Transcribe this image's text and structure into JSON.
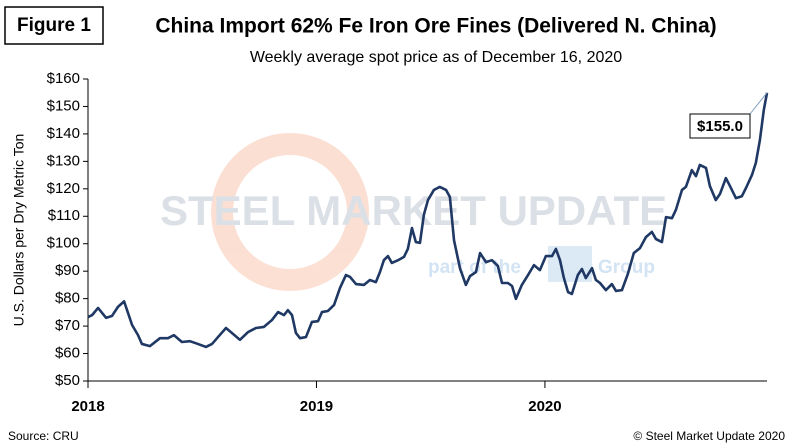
{
  "chart_data": {
    "type": "line",
    "figure_label": "Figure 1",
    "title": "China Import 62% Fe Iron Ore Fines (Delivered N. China)",
    "subtitle": "Weekly average spot price as of December 16, 2020",
    "y_label": "U.S. Dollars per Dry Metric Ton",
    "source": "Source: CRU",
    "copyright": "© Steel Market Update 2020",
    "watermark": [
      "STEEL MARKET UPDATE",
      "part of the",
      "Group"
    ],
    "xlim": [
      2018,
      2020.972
    ],
    "xticks": [
      2018,
      2019,
      2020
    ],
    "ylim": [
      50,
      160
    ],
    "yticks": [
      {
        "value": 50,
        "label": "$50"
      },
      {
        "value": 60,
        "label": "$60"
      },
      {
        "value": 70,
        "label": "$70"
      },
      {
        "value": 80,
        "label": "$80"
      },
      {
        "value": 90,
        "label": "$90"
      },
      {
        "value": 100,
        "label": "$100"
      },
      {
        "value": 110,
        "label": "$110"
      },
      {
        "value": 120,
        "label": "$120"
      },
      {
        "value": 130,
        "label": "$130"
      },
      {
        "value": 140,
        "label": "$140"
      },
      {
        "value": 150,
        "label": "$150"
      },
      {
        "value": 160,
        "label": "$160"
      }
    ],
    "grid": false,
    "x": [
      2018.0,
      2018.018,
      2018.044,
      2018.079,
      2018.105,
      2018.131,
      2018.158,
      2018.193,
      2018.219,
      2018.236,
      2018.271,
      2018.315,
      2018.35,
      2018.376,
      2018.411,
      2018.446,
      2018.481,
      2018.516,
      2018.543,
      2018.569,
      2018.604,
      2018.63,
      2018.665,
      2018.7,
      2018.735,
      2018.77,
      2018.805,
      2018.832,
      2018.858,
      2018.875,
      2018.893,
      2018.91,
      2018.928,
      2018.954,
      2018.98,
      2019.007,
      2019.024,
      2019.05,
      2019.077,
      2019.103,
      2019.129,
      2019.147,
      2019.173,
      2019.208,
      2019.234,
      2019.26,
      2019.278,
      2019.295,
      2019.313,
      2019.33,
      2019.357,
      2019.383,
      2019.4,
      2019.418,
      2019.435,
      2019.453,
      2019.47,
      2019.488,
      2019.514,
      2019.54,
      2019.567,
      2019.584,
      2019.602,
      2019.628,
      2019.654,
      2019.672,
      2019.698,
      2019.716,
      2019.742,
      2019.768,
      2019.794,
      2019.812,
      2019.838,
      2019.856,
      2019.873,
      2019.899,
      2019.926,
      2019.952,
      2019.978,
      2020.004,
      2020.031,
      2020.048,
      2020.066,
      2020.083,
      2020.101,
      2020.118,
      2020.144,
      2020.162,
      2020.179,
      2020.206,
      2020.223,
      2020.241,
      2020.267,
      2020.293,
      2020.311,
      2020.337,
      2020.363,
      2020.389,
      2020.416,
      2020.442,
      2020.468,
      2020.486,
      2020.512,
      2020.53,
      2020.556,
      2020.573,
      2020.6,
      2020.617,
      2020.643,
      2020.661,
      2020.678,
      2020.705,
      2020.722,
      2020.748,
      2020.766,
      2020.792,
      2020.81,
      2020.836,
      2020.862,
      2020.88,
      2020.906,
      2020.923,
      2020.941,
      2020.958,
      2020.972
    ],
    "series": [
      {
        "name": "China Import 62% Fe Iron Ore Fines",
        "color": "#1f3864",
        "values": [
          73.3,
          74,
          76.6,
          73,
          73.7,
          77,
          79,
          70.4,
          66.7,
          63.5,
          62.7,
          65.6,
          65.6,
          66.7,
          64.2,
          64.5,
          63.5,
          62.4,
          63.5,
          66,
          69.3,
          67.5,
          65,
          67.8,
          69.3,
          69.7,
          72.2,
          75.1,
          74,
          75.8,
          74,
          67.5,
          65.6,
          66,
          71.5,
          71.8,
          75.1,
          75.5,
          77.7,
          83.9,
          88.6,
          87.9,
          85.3,
          85,
          86.8,
          86,
          89.7,
          94,
          95.5,
          93,
          94,
          95.2,
          98.1,
          105.7,
          100.6,
          100.3,
          110.5,
          115.9,
          119.6,
          120.7,
          119.6,
          117,
          101.3,
          91.1,
          85,
          88.2,
          89.7,
          96.6,
          93.3,
          94,
          91.9,
          85.7,
          85.7,
          84.6,
          79.9,
          85,
          88.6,
          92.2,
          90.4,
          95.5,
          95.5,
          98.1,
          94,
          87.5,
          82.4,
          81.7,
          88.6,
          90.8,
          87.5,
          91.1,
          86.8,
          85.7,
          83.1,
          85.3,
          82.8,
          83.1,
          89,
          96.6,
          98.4,
          102.4,
          104.3,
          101.7,
          100.6,
          109.7,
          109.3,
          112.3,
          119.6,
          120.7,
          126.8,
          124.6,
          128.7,
          127.6,
          121,
          115.9,
          118.1,
          123.9,
          121,
          116.6,
          117.3,
          120.3,
          125,
          129.4,
          137.8,
          148.7,
          155
        ]
      }
    ],
    "annotations": [
      {
        "text": "$155.0",
        "x": 2020.972,
        "y": 155
      }
    ]
  }
}
